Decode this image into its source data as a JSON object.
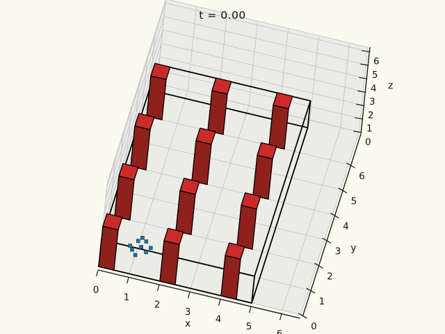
{
  "title": "t = 0.00",
  "axes": {
    "x": {
      "label": "x",
      "ticks": [
        "0",
        "1",
        "2",
        "3",
        "4",
        "5",
        "6"
      ]
    },
    "y": {
      "label": "y",
      "ticks": [
        "0",
        "1",
        "2",
        "3",
        "4",
        "5",
        "6"
      ]
    },
    "z": {
      "label": "z",
      "ticks": [
        "0",
        "1",
        "2",
        "3",
        "4",
        "5",
        "6"
      ]
    }
  },
  "chart_data": {
    "type": "scatter",
    "projection": "3d",
    "title": "t = 0.00",
    "xlabel": "x",
    "ylabel": "y",
    "zlabel": "z",
    "xlim": [
      0,
      6.6
    ],
    "ylim": [
      0,
      7.3
    ],
    "zlim": [
      0,
      6.3
    ],
    "xticks": [
      0,
      1,
      2,
      3,
      4,
      5,
      6
    ],
    "yticks": [
      0,
      1,
      2,
      3,
      4,
      5,
      6
    ],
    "zticks": [
      0,
      1,
      2,
      3,
      4,
      5,
      6
    ],
    "grid": true,
    "boundary_box": {
      "x": [
        0,
        5
      ],
      "y": [
        0,
        7
      ],
      "z": [
        0,
        2
      ]
    },
    "obstacles": {
      "base_size": [
        0.5,
        0.5
      ],
      "height": 3,
      "positions_xy": [
        [
          0,
          0
        ],
        [
          2,
          0
        ],
        [
          4,
          0
        ],
        [
          0,
          2
        ],
        [
          2,
          2
        ],
        [
          4,
          2
        ],
        [
          0,
          4
        ],
        [
          2,
          4
        ],
        [
          4,
          4
        ],
        [
          0,
          6
        ],
        [
          2,
          6
        ],
        [
          4,
          6
        ]
      ]
    },
    "particles": {
      "marker": "square",
      "z": 0,
      "points_xy": [
        [
          0.75,
          1.05
        ],
        [
          0.95,
          1.3
        ],
        [
          1.2,
          1.35
        ],
        [
          1.4,
          1.15
        ],
        [
          1.1,
          1.1
        ],
        [
          0.85,
          0.92
        ],
        [
          1.3,
          0.95
        ],
        [
          1.05,
          1.45
        ],
        [
          1.0,
          0.75
        ]
      ]
    },
    "colors": {
      "background": "#fafaef",
      "pane": "#ecece6",
      "grid": "#c6c6cf",
      "spine": "#1a1a1a",
      "box_edge": "#000000",
      "obstacle_top": "#cb2b28",
      "obstacle_left": "#d9453c",
      "obstacle_front": "#8f211d",
      "obstacle_edge": "#000000",
      "particle_fill": "#24719f",
      "particle_edge": "#123d5c"
    }
  }
}
